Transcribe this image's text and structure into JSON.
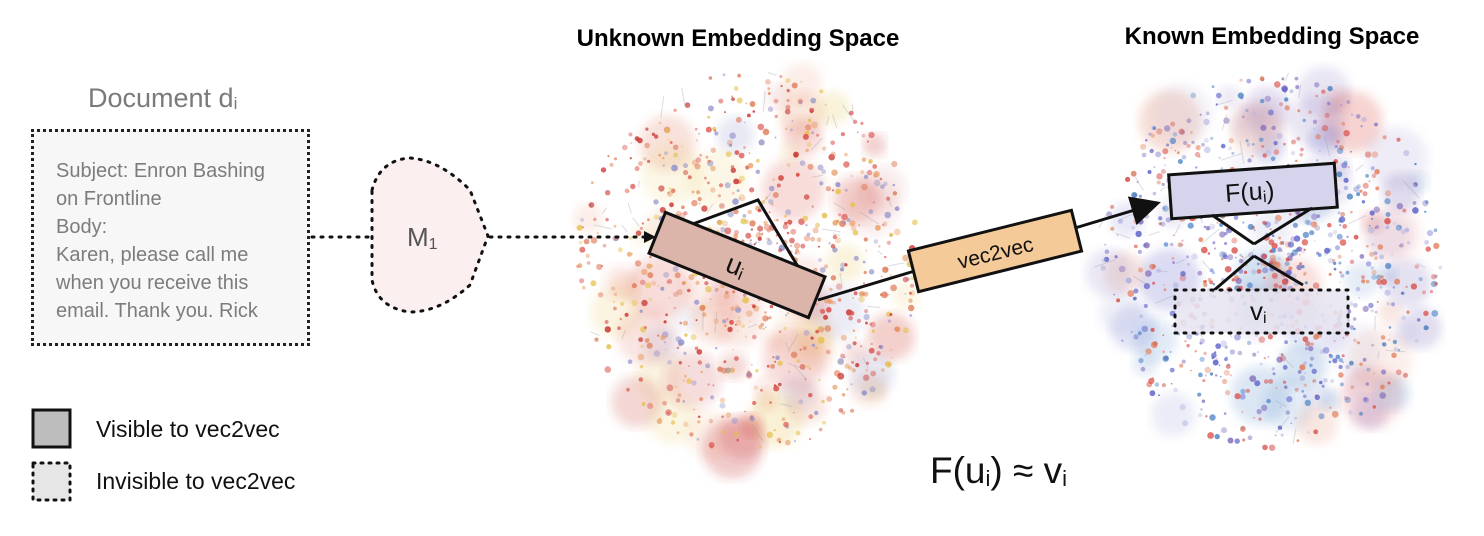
{
  "titles": {
    "unknown": "Unknown Embedding Space",
    "known": "Known Embedding Space"
  },
  "document": {
    "title": "Document d",
    "title_subscript": "i",
    "lines": [
      "Subject: Enron Bashing",
      "on Frontline",
      "Body:",
      "Karen, please call me",
      "when you receive this",
      "email. Thank you. Rick"
    ]
  },
  "model": {
    "label": "M",
    "subscript": "1"
  },
  "boxes": {
    "u": {
      "label": "u",
      "subscript": "i",
      "color": "#dcb5aa"
    },
    "vec2vec": {
      "label": "vec2vec",
      "color": "#f4ca98"
    },
    "f": {
      "label": "F(u",
      "subscript": "i",
      "suffix": ")",
      "color": "#d6d4ec"
    },
    "v": {
      "label": "v",
      "subscript": "i"
    }
  },
  "legend": {
    "visible": "Visible to vec2vec",
    "invisible": "Invisible to vec2vec"
  },
  "formula": {
    "left": "F(u",
    "sub1": "i",
    "mid": ") ≈ v",
    "sub2": "i"
  },
  "colors": {
    "unknown_cloud": [
      "#d84a44",
      "#e07c5a",
      "#c9302c",
      "#e8a06a",
      "#8e8fc9",
      "#e5c04a"
    ],
    "known_cloud": [
      "#5a5fc8",
      "#d84a44",
      "#7f6ab9",
      "#e07c5a",
      "#4a82c4",
      "#b5b6e0"
    ]
  }
}
